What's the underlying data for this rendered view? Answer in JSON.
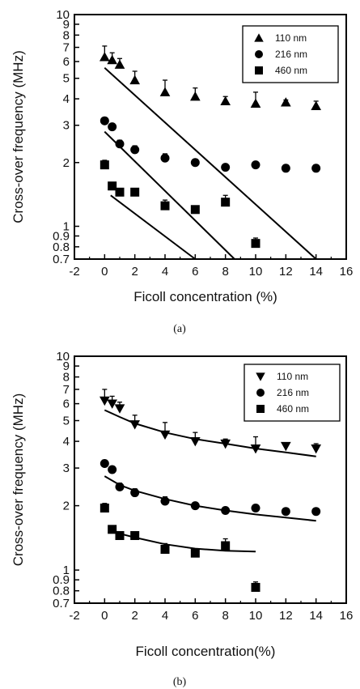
{
  "chart_data": [
    {
      "type": "scatter",
      "caption": "(a)",
      "xlabel": "Ficoll concentration (%)",
      "ylabel": "Cross-over frequency (MHz)",
      "xlim": [
        -2,
        16
      ],
      "ylim": [
        0.7,
        10
      ],
      "yscale": "log",
      "xticks": [
        "-2",
        "0",
        "2",
        "4",
        "6",
        "8",
        "10",
        "12",
        "14",
        "16"
      ],
      "yticks": [
        "0.7",
        "0.8",
        "0.9",
        "1",
        "2",
        "3",
        "4",
        "5",
        "6",
        "7",
        "8",
        "9",
        "10"
      ],
      "legend_position": "top-right",
      "series": [
        {
          "name": "110 nm",
          "marker": "triangle-up",
          "x": [
            0,
            0.5,
            1,
            2,
            4,
            6,
            8,
            10,
            12,
            14
          ],
          "y": [
            6.3,
            6.1,
            5.8,
            4.9,
            4.3,
            4.1,
            3.9,
            3.8,
            3.85,
            3.7
          ],
          "err": [
            0.8,
            0.5,
            0.4,
            0.5,
            0.6,
            0.4,
            0.2,
            0.5,
            0.1,
            0.2
          ],
          "fit": {
            "x": [
              0,
              14
            ],
            "y": [
              5.6,
              0.7
            ]
          }
        },
        {
          "name": "216 nm",
          "marker": "circle",
          "x": [
            0,
            0.5,
            1,
            2,
            4,
            6,
            8,
            10,
            12,
            14
          ],
          "y": [
            3.15,
            2.95,
            2.45,
            2.3,
            2.1,
            2.0,
            1.9,
            1.95,
            1.88,
            1.88
          ],
          "err": [
            0.05,
            0.05,
            0.1,
            0.1,
            0.1,
            0.05,
            0.05,
            0.05,
            0.05,
            0.05
          ],
          "fit": {
            "x": [
              0,
              8.6
            ],
            "y": [
              2.8,
              0.7
            ]
          }
        },
        {
          "name": "460 nm",
          "marker": "square",
          "x": [
            0,
            0.5,
            1,
            2,
            4,
            6,
            8,
            10
          ],
          "y": [
            1.95,
            1.55,
            1.45,
            1.45,
            1.25,
            1.2,
            1.3,
            0.83
          ],
          "err": [
            0.1,
            0.05,
            0.05,
            0.05,
            0.08,
            0.05,
            0.1,
            0.05
          ],
          "fit": {
            "x": [
              0.4,
              6
            ],
            "y": [
              1.4,
              0.7
            ]
          }
        }
      ]
    },
    {
      "type": "scatter",
      "caption": "(b)",
      "xlabel": "Ficoll concentration(%)",
      "ylabel": "Cross-over frequency (MHz)",
      "xlim": [
        -2,
        16
      ],
      "ylim": [
        0.7,
        10
      ],
      "yscale": "log",
      "xticks": [
        "-2",
        "0",
        "2",
        "4",
        "6",
        "8",
        "10",
        "12",
        "14",
        "16"
      ],
      "yticks": [
        "0.7",
        "0.8",
        "0.9",
        "1",
        "2",
        "3",
        "4",
        "5",
        "6",
        "7",
        "8",
        "9",
        "10"
      ],
      "legend_position": "top-right",
      "series": [
        {
          "name": "110 nm",
          "marker": "triangle-down",
          "x": [
            0,
            0.5,
            1,
            2,
            4,
            6,
            8,
            10,
            12,
            14
          ],
          "y": [
            6.2,
            6.0,
            5.7,
            4.8,
            4.3,
            4.0,
            3.9,
            3.7,
            3.8,
            3.7
          ],
          "err": [
            0.8,
            0.5,
            0.4,
            0.5,
            0.6,
            0.4,
            0.2,
            0.5,
            0.1,
            0.2
          ],
          "fit": {
            "x": [
              0,
              1,
              2,
              4,
              6,
              8,
              10,
              12,
              14
            ],
            "y": [
              5.6,
              5.2,
              4.85,
              4.4,
              4.1,
              3.9,
              3.7,
              3.55,
              3.4
            ]
          }
        },
        {
          "name": "216 nm",
          "marker": "circle",
          "x": [
            0,
            0.5,
            1,
            2,
            4,
            6,
            8,
            10,
            12,
            14
          ],
          "y": [
            3.15,
            2.95,
            2.45,
            2.3,
            2.1,
            2.0,
            1.9,
            1.95,
            1.88,
            1.88
          ],
          "err": [
            0.05,
            0.05,
            0.1,
            0.1,
            0.1,
            0.05,
            0.05,
            0.05,
            0.05,
            0.05
          ],
          "fit": {
            "x": [
              0,
              1,
              2,
              4,
              6,
              8,
              10,
              12,
              14
            ],
            "y": [
              2.75,
              2.5,
              2.35,
              2.15,
              2.0,
              1.9,
              1.82,
              1.76,
              1.7
            ]
          }
        },
        {
          "name": "460 nm",
          "marker": "square",
          "x": [
            0,
            0.5,
            1,
            2,
            4,
            6,
            8,
            10
          ],
          "y": [
            1.95,
            1.55,
            1.45,
            1.45,
            1.25,
            1.2,
            1.3,
            0.83
          ],
          "err": [
            0.1,
            0.05,
            0.05,
            0.05,
            0.08,
            0.05,
            0.1,
            0.05
          ],
          "fit": {
            "x": [
              0.5,
              1,
              2,
              4,
              6,
              8,
              10
            ],
            "y": [
              1.55,
              1.48,
              1.42,
              1.32,
              1.26,
              1.23,
              1.22
            ]
          }
        }
      ]
    }
  ]
}
